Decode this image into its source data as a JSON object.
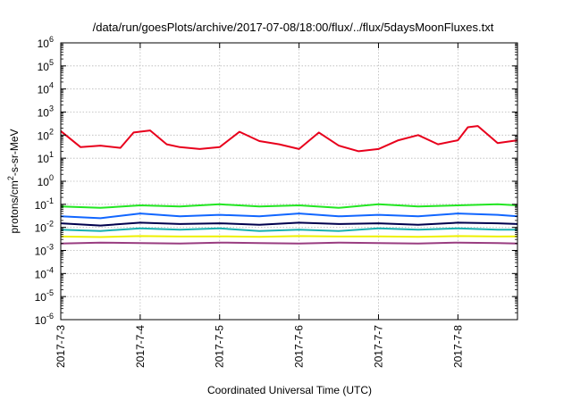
{
  "chart_data": {
    "type": "line",
    "title": "/data/run/goesPlots/archive/2017-07-08/18:00/flux/../flux/5daysMoonFluxes.txt",
    "xlabel": "Coordinated Universal Time (UTC)",
    "ylabel": "protons/cm²-s-sr-MeV",
    "ylabel_parts": [
      "protons/cm",
      "2",
      "-s-sr-MeV"
    ],
    "y_scale": "log",
    "ylim": [
      1e-06,
      1000000
    ],
    "y_ticks": [
      {
        "value": 1e-06,
        "base": "10",
        "exp": "-6"
      },
      {
        "value": 1e-05,
        "base": "10",
        "exp": "-5"
      },
      {
        "value": 0.0001,
        "base": "10",
        "exp": "-4"
      },
      {
        "value": 0.001,
        "base": "10",
        "exp": "-3"
      },
      {
        "value": 0.01,
        "base": "10",
        "exp": "-2"
      },
      {
        "value": 0.1,
        "base": "10",
        "exp": "-1"
      },
      {
        "value": 1,
        "base": "10",
        "exp": "0"
      },
      {
        "value": 10,
        "base": "10",
        "exp": "1"
      },
      {
        "value": 100,
        "base": "10",
        "exp": "2"
      },
      {
        "value": 1000,
        "base": "10",
        "exp": "3"
      },
      {
        "value": 10000,
        "base": "10",
        "exp": "4"
      },
      {
        "value": 100000,
        "base": "10",
        "exp": "5"
      },
      {
        "value": 1000000,
        "base": "10",
        "exp": "6"
      }
    ],
    "xlim": [
      "2017-07-03",
      "2017-07-08 18:00"
    ],
    "x_ticks": [
      {
        "date": "2017-07-03",
        "label": "2017-7-3"
      },
      {
        "date": "2017-07-04",
        "label": "2017-7-4"
      },
      {
        "date": "2017-07-05",
        "label": "2017-7-5"
      },
      {
        "date": "2017-07-06",
        "label": "2017-7-6"
      },
      {
        "date": "2017-07-07",
        "label": "2017-7-7"
      },
      {
        "date": "2017-07-08",
        "label": "2017-7-8"
      }
    ],
    "grid": true,
    "series": [
      {
        "color": "#e8001c",
        "x": [
          "2017-07-03 00:00",
          "2017-07-03 06:00",
          "2017-07-03 12:00",
          "2017-07-03 18:00",
          "2017-07-03 22:00",
          "2017-07-04 03:00",
          "2017-07-04 08:00",
          "2017-07-04 12:00",
          "2017-07-04 18:00",
          "2017-07-05 00:00",
          "2017-07-05 06:00",
          "2017-07-05 12:00",
          "2017-07-05 18:00",
          "2017-07-06 00:00",
          "2017-07-06 06:00",
          "2017-07-06 12:00",
          "2017-07-06 18:00",
          "2017-07-07 00:00",
          "2017-07-07 06:00",
          "2017-07-07 12:00",
          "2017-07-07 18:00",
          "2017-07-08 00:00",
          "2017-07-08 03:00",
          "2017-07-08 06:00",
          "2017-07-08 12:00",
          "2017-07-08 18:00"
        ],
        "values": [
          150,
          30,
          35,
          28,
          130,
          160,
          40,
          30,
          25,
          30,
          140,
          55,
          40,
          25,
          130,
          35,
          20,
          25,
          60,
          100,
          40,
          60,
          220,
          250,
          45,
          60
        ]
      },
      {
        "color": "#22e622",
        "x": [
          "2017-07-03 00:00",
          "2017-07-03 12:00",
          "2017-07-04 00:00",
          "2017-07-04 12:00",
          "2017-07-05 00:00",
          "2017-07-05 12:00",
          "2017-07-06 00:00",
          "2017-07-06 12:00",
          "2017-07-07 00:00",
          "2017-07-07 12:00",
          "2017-07-08 00:00",
          "2017-07-08 12:00",
          "2017-07-08 18:00"
        ],
        "values": [
          0.08,
          0.07,
          0.09,
          0.08,
          0.1,
          0.08,
          0.09,
          0.07,
          0.1,
          0.08,
          0.09,
          0.1,
          0.09
        ]
      },
      {
        "color": "#1166ff",
        "x": [
          "2017-07-03 00:00",
          "2017-07-03 12:00",
          "2017-07-04 00:00",
          "2017-07-04 12:00",
          "2017-07-05 00:00",
          "2017-07-05 12:00",
          "2017-07-06 00:00",
          "2017-07-06 12:00",
          "2017-07-07 00:00",
          "2017-07-07 12:00",
          "2017-07-08 00:00",
          "2017-07-08 12:00",
          "2017-07-08 18:00"
        ],
        "values": [
          0.03,
          0.025,
          0.04,
          0.03,
          0.035,
          0.03,
          0.04,
          0.03,
          0.035,
          0.03,
          0.04,
          0.035,
          0.03
        ]
      },
      {
        "color": "#00004d",
        "x": [
          "2017-07-03 00:00",
          "2017-07-03 12:00",
          "2017-07-04 00:00",
          "2017-07-04 12:00",
          "2017-07-05 00:00",
          "2017-07-05 12:00",
          "2017-07-06 00:00",
          "2017-07-06 12:00",
          "2017-07-07 00:00",
          "2017-07-07 12:00",
          "2017-07-08 00:00",
          "2017-07-08 12:00",
          "2017-07-08 18:00"
        ],
        "values": [
          0.015,
          0.012,
          0.016,
          0.014,
          0.015,
          0.013,
          0.016,
          0.014,
          0.015,
          0.013,
          0.016,
          0.015,
          0.014
        ]
      },
      {
        "color": "#18b0b0",
        "x": [
          "2017-07-03 00:00",
          "2017-07-03 12:00",
          "2017-07-04 00:00",
          "2017-07-04 12:00",
          "2017-07-05 00:00",
          "2017-07-05 12:00",
          "2017-07-06 00:00",
          "2017-07-06 12:00",
          "2017-07-07 00:00",
          "2017-07-07 12:00",
          "2017-07-08 00:00",
          "2017-07-08 12:00",
          "2017-07-08 18:00"
        ],
        "values": [
          0.008,
          0.007,
          0.009,
          0.008,
          0.009,
          0.007,
          0.008,
          0.007,
          0.009,
          0.008,
          0.009,
          0.008,
          0.008
        ]
      },
      {
        "color": "#eef000",
        "x": [
          "2017-07-03 00:00",
          "2017-07-03 12:00",
          "2017-07-04 00:00",
          "2017-07-04 12:00",
          "2017-07-05 00:00",
          "2017-07-05 12:00",
          "2017-07-06 00:00",
          "2017-07-06 12:00",
          "2017-07-07 00:00",
          "2017-07-07 12:00",
          "2017-07-08 00:00",
          "2017-07-08 12:00",
          "2017-07-08 18:00"
        ],
        "values": [
          0.004,
          0.0038,
          0.0042,
          0.004,
          0.0041,
          0.0039,
          0.0042,
          0.004,
          0.0041,
          0.0039,
          0.0042,
          0.004,
          0.0041
        ]
      },
      {
        "color": "#993d80",
        "x": [
          "2017-07-03 00:00",
          "2017-07-03 12:00",
          "2017-07-04 00:00",
          "2017-07-04 12:00",
          "2017-07-05 00:00",
          "2017-07-05 12:00",
          "2017-07-06 00:00",
          "2017-07-06 12:00",
          "2017-07-07 00:00",
          "2017-07-07 12:00",
          "2017-07-08 00:00",
          "2017-07-08 12:00",
          "2017-07-08 18:00"
        ],
        "values": [
          0.002,
          0.0022,
          0.0021,
          0.002,
          0.0022,
          0.0021,
          0.002,
          0.0022,
          0.0021,
          0.002,
          0.0022,
          0.0021,
          0.002
        ]
      }
    ]
  }
}
